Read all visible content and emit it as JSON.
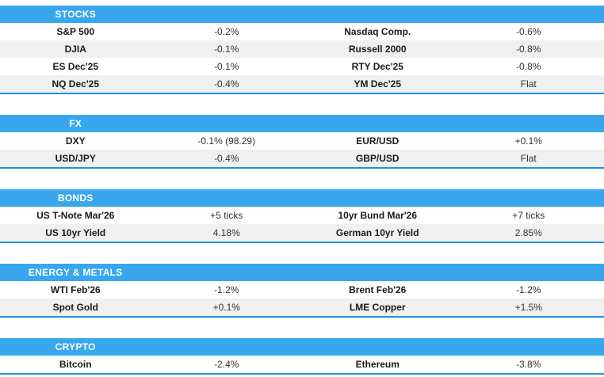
{
  "theme": {
    "header_bg": "#38a7ee",
    "section_border": "#1d91e4",
    "row_alt_bg": "#f0f0f1",
    "header_text": "#ffffff",
    "name_color": "#1a1a1a",
    "value_color": "#333333"
  },
  "sections": [
    {
      "title": "STOCKS",
      "rows": [
        {
          "left_name": "S&P 500",
          "left_value": "-0.2%",
          "right_name": "Nasdaq Comp.",
          "right_value": "-0.6%"
        },
        {
          "left_name": "DJIA",
          "left_value": "-0.1%",
          "right_name": "Russell 2000",
          "right_value": "-0.8%"
        },
        {
          "left_name": "ES Dec'25",
          "left_value": "-0.1%",
          "right_name": "RTY Dec'25",
          "right_value": "-0.8%"
        },
        {
          "left_name": "NQ Dec'25",
          "left_value": "-0.4%",
          "right_name": "YM Dec'25",
          "right_value": "Flat"
        }
      ]
    },
    {
      "title": "FX",
      "rows": [
        {
          "left_name": "DXY",
          "left_value": "-0.1% (98.29)",
          "right_name": "EUR/USD",
          "right_value": "+0.1%"
        },
        {
          "left_name": "USD/JPY",
          "left_value": "-0.4%",
          "right_name": "GBP/USD",
          "right_value": "Flat"
        }
      ]
    },
    {
      "title": "BONDS",
      "rows": [
        {
          "left_name": "US T-Note Mar'26",
          "left_value": "+5 ticks",
          "right_name": "10yr Bund Mar'26",
          "right_value": "+7 ticks"
        },
        {
          "left_name": "US 10yr Yield",
          "left_value": "4.18%",
          "right_name": "German 10yr Yield",
          "right_value": "2.85%"
        }
      ]
    },
    {
      "title": "ENERGY & METALS",
      "rows": [
        {
          "left_name": "WTI Feb'26",
          "left_value": "-1.2%",
          "right_name": "Brent Feb'26",
          "right_value": "-1.2%"
        },
        {
          "left_name": "Spot Gold",
          "left_value": "+0.1%",
          "right_name": "LME Copper",
          "right_value": "+1.5%"
        }
      ]
    },
    {
      "title": "CRYPTO",
      "rows": [
        {
          "left_name": "Bitcoin",
          "left_value": "-2.4%",
          "right_name": "Ethereum",
          "right_value": "-3.8%"
        }
      ]
    }
  ]
}
